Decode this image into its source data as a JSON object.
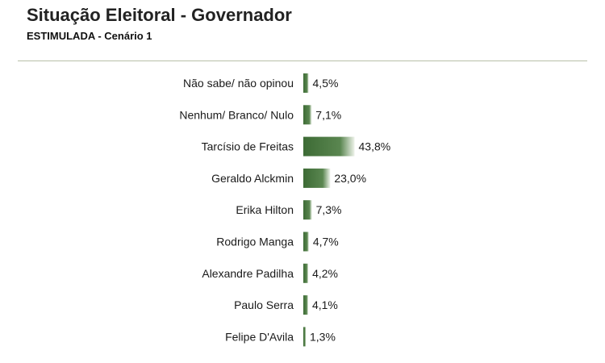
{
  "header": {
    "title": "Situação Eleitoral - Governador",
    "subtitle": "ESTIMULADA - Cenário 1"
  },
  "colors": {
    "bar_dark": "#3d6b35",
    "bar_light": "#e8efe2",
    "divider": "#b8bfa8"
  },
  "chart_data": {
    "type": "bar",
    "orientation": "horizontal",
    "title": "Situação Eleitoral - Governador",
    "subtitle": "ESTIMULADA - Cenário 1",
    "xlabel": "",
    "ylabel": "",
    "xlim": [
      0,
      100
    ],
    "grid": false,
    "legend": "none",
    "categories": [
      "Não sabe/ não opinou",
      "Nenhum/ Branco/ Nulo",
      "Tarcísio de Freitas",
      "Geraldo Alckmin",
      "Erika Hilton",
      "Rodrigo Manga",
      "Alexandre Padilha",
      "Paulo Serra",
      "Felipe D'Avila"
    ],
    "values": [
      4.5,
      7.1,
      43.8,
      23.0,
      7.3,
      4.7,
      4.2,
      4.1,
      1.3
    ],
    "value_labels": [
      "4,5%",
      "7,1%",
      "43,8%",
      "23,0%",
      "7,3%",
      "4,7%",
      "4,2%",
      "4,1%",
      "1,3%"
    ]
  }
}
